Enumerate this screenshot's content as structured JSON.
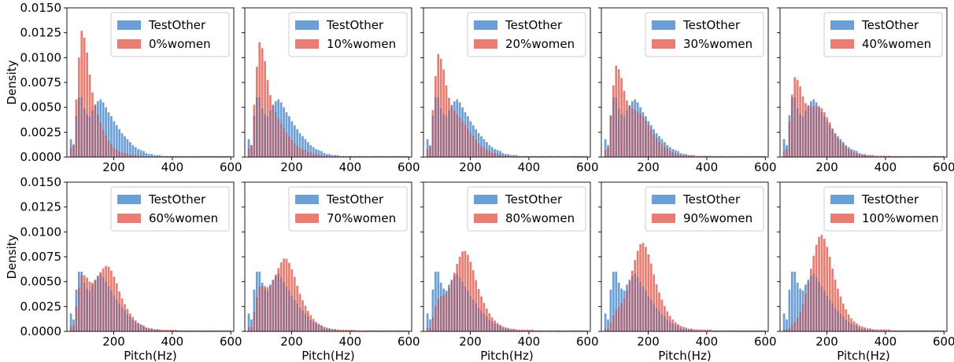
{
  "figure": {
    "ylabel": "Density",
    "xlabel": "Pitch(Hz)"
  },
  "chart_data": [
    {
      "type": "bar",
      "legend": [
        "TestOther",
        "0%women"
      ],
      "women_pct": 0,
      "xlabel": "",
      "ylabel": "Density",
      "xlim": [
        40,
        610
      ],
      "ylim": [
        0,
        0.015
      ]
    },
    {
      "type": "bar",
      "legend": [
        "TestOther",
        "10%women"
      ],
      "women_pct": 10,
      "xlabel": "",
      "ylabel": "",
      "xlim": [
        40,
        610
      ],
      "ylim": [
        0,
        0.015
      ]
    },
    {
      "type": "bar",
      "legend": [
        "TestOther",
        "20%women"
      ],
      "women_pct": 20,
      "xlabel": "",
      "ylabel": "",
      "xlim": [
        40,
        610
      ],
      "ylim": [
        0,
        0.015
      ]
    },
    {
      "type": "bar",
      "legend": [
        "TestOther",
        "30%women"
      ],
      "women_pct": 30,
      "xlabel": "",
      "ylabel": "",
      "xlim": [
        40,
        610
      ],
      "ylim": [
        0,
        0.015
      ]
    },
    {
      "type": "bar",
      "legend": [
        "TestOther",
        "40%women"
      ],
      "women_pct": 40,
      "xlabel": "",
      "ylabel": "",
      "xlim": [
        40,
        610
      ],
      "ylim": [
        0,
        0.015
      ]
    },
    {
      "type": "bar",
      "legend": [
        "TestOther",
        "60%women"
      ],
      "women_pct": 60,
      "xlabel": "Pitch(Hz)",
      "ylabel": "Density",
      "xlim": [
        40,
        610
      ],
      "ylim": [
        0,
        0.015
      ]
    },
    {
      "type": "bar",
      "legend": [
        "TestOther",
        "70%women"
      ],
      "women_pct": 70,
      "xlabel": "Pitch(Hz)",
      "ylabel": "",
      "xlim": [
        40,
        610
      ],
      "ylim": [
        0,
        0.015
      ]
    },
    {
      "type": "bar",
      "legend": [
        "TestOther",
        "80%women"
      ],
      "women_pct": 80,
      "xlabel": "Pitch(Hz)",
      "ylabel": "",
      "xlim": [
        40,
        610
      ],
      "ylim": [
        0,
        0.015
      ]
    },
    {
      "type": "bar",
      "legend": [
        "TestOther",
        "90%women"
      ],
      "women_pct": 90,
      "xlabel": "Pitch(Hz)",
      "ylabel": "",
      "xlim": [
        40,
        610
      ],
      "ylim": [
        0,
        0.015
      ]
    },
    {
      "type": "bar",
      "legend": [
        "TestOther",
        "100%women"
      ],
      "women_pct": 100,
      "xlabel": "Pitch(Hz)",
      "ylabel": "",
      "xlim": [
        40,
        610
      ],
      "ylim": [
        0,
        0.015
      ]
    }
  ],
  "histogram": {
    "bin_start": 50,
    "bin_width": 9.2,
    "testother_density": [
      0.0018,
      0.0012,
      0.0042,
      0.006,
      0.006,
      0.0049,
      0.0043,
      0.0041,
      0.0047,
      0.0052,
      0.0056,
      0.0058,
      0.0055,
      0.005,
      0.0045,
      0.0041,
      0.0036,
      0.0032,
      0.0028,
      0.0024,
      0.0021,
      0.0018,
      0.0015,
      0.0012,
      0.001,
      0.0008,
      0.0007,
      0.0006,
      0.0004,
      0.0003,
      0.0003,
      0.0002,
      0.0002,
      0.0002,
      0.0001,
      0.0001,
      0.0001,
      0.0001,
      0.0001,
      0.0001,
      0.0001,
      0.0001,
      0.0001,
      0.0001,
      0.0001,
      0.0001,
      0.0001,
      0.0001,
      0.0001,
      0.0001,
      0.0001,
      0.0001,
      0.0001,
      0.0001,
      0.0001,
      0.0001,
      0.0001,
      0.0001,
      0.0001,
      0.0001
    ],
    "male_density": [
      0.001,
      0.0013,
      0.0058,
      0.01,
      0.0127,
      0.012,
      0.0105,
      0.0083,
      0.0065,
      0.0053,
      0.0043,
      0.0035,
      0.0028,
      0.0022,
      0.0017,
      0.0013,
      0.001,
      0.0008,
      0.0006,
      0.0005,
      0.0004,
      0.0004,
      0.0003,
      0.0003,
      0.0002,
      0.0002,
      0.0002,
      0.0001,
      0.0001,
      0.0001,
      0.0001,
      0.0001,
      0.0001,
      0.0001,
      0.0001,
      0.0001,
      0.0001,
      0.0001,
      0.0001,
      0.0001,
      0.0001,
      0.0001,
      0.0001,
      0.0001,
      0.0001,
      0.0001,
      0.0001,
      0.0001,
      0.0001,
      0.0001,
      0.0001,
      0.0001,
      0.0001,
      0.0001,
      0.0001,
      0.0001,
      0.0001,
      0.0001,
      0.0001,
      0.0001
    ],
    "female_density": [
      0.0002,
      0.0002,
      0.0004,
      0.0007,
      0.001,
      0.0014,
      0.002,
      0.0028,
      0.0038,
      0.005,
      0.0063,
      0.0076,
      0.0087,
      0.0095,
      0.0097,
      0.0093,
      0.0085,
      0.0075,
      0.0063,
      0.0052,
      0.0043,
      0.0035,
      0.0028,
      0.0022,
      0.0017,
      0.0013,
      0.001,
      0.0008,
      0.0006,
      0.0005,
      0.0004,
      0.0003,
      0.0003,
      0.0002,
      0.0002,
      0.0002,
      0.0002,
      0.0002,
      0.0002,
      0.0002,
      0.0001,
      0.0001,
      0.0001,
      0.0001,
      0.0001,
      0.0001,
      0.0001,
      0.0001,
      0.0001,
      0.0001,
      0.0001,
      0.0001,
      0.0001,
      0.0001,
      0.0001,
      0.0001,
      0.0001,
      0.0001,
      0.0001,
      0.0001
    ]
  },
  "axes": {
    "yticks": [
      "0.0000",
      "0.0025",
      "0.0050",
      "0.0075",
      "0.0100",
      "0.0125",
      "0.0150"
    ],
    "xticks": [
      "200",
      "400",
      "600"
    ]
  },
  "colors": {
    "testother": "#6a9fd8",
    "women_mix": "#ea7d72",
    "overlap": "#a06c84",
    "axis": "#000000"
  }
}
